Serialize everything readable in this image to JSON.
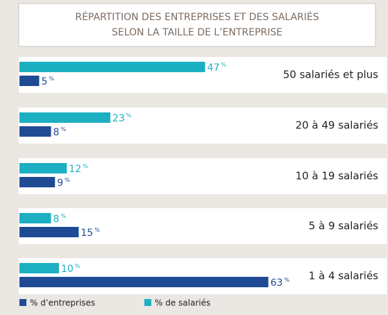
{
  "chart_data": {
    "type": "bar",
    "orientation": "horizontal",
    "title": [
      "RÉPARTITION DES ENTREPRISES ET DES SALARIÉS",
      "SELON LA TAILLE DE L’ENTREPRISE"
    ],
    "categories": [
      "50 salariés et plus",
      "20 à 49 salariés",
      "10 à 19 salariés",
      "5 à 9 salariés",
      "1 à 4 salariés"
    ],
    "series": [
      {
        "name": "% d’entreprises",
        "color": "#1f4b94",
        "values": [
          5,
          8,
          9,
          15,
          63
        ],
        "value_labels": [
          "5%",
          "8%",
          "9%",
          "15%",
          "63%"
        ]
      },
      {
        "name": "% de salariés",
        "color": "#1cafc2",
        "values": [
          47,
          23,
          12,
          8,
          10
        ],
        "value_labels": [
          "47%",
          "23%",
          "12%",
          "8%",
          "10%"
        ]
      }
    ],
    "xlim": [
      0,
      65
    ]
  }
}
